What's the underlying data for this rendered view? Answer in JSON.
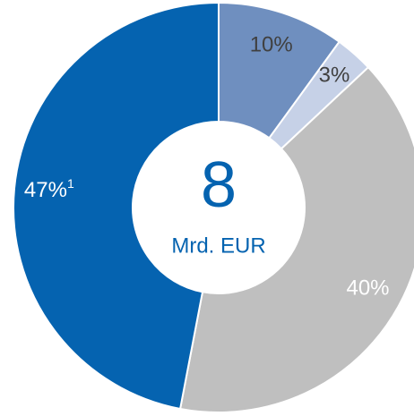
{
  "chart_data": {
    "type": "donut",
    "values": [
      10,
      3,
      40,
      47
    ],
    "value_labels": [
      "10%",
      "3%",
      "40%",
      "47%"
    ],
    "colors": [
      "#6f8fbf",
      "#c6d1e7",
      "#bfbfbf",
      "#0563b0"
    ],
    "label_colors": [
      "#404040",
      "#404040",
      "#ffffff",
      "#ffffff"
    ],
    "footnote": "1",
    "center_value": "8",
    "center_label": "Mrd. EUR",
    "center_color": "#0563b0"
  }
}
